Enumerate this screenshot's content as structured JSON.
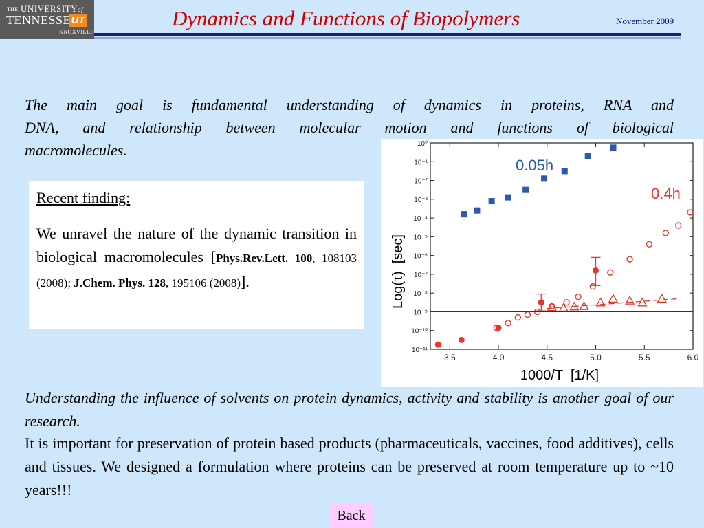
{
  "header": {
    "logo": {
      "the": "THE",
      "university": "UNIVERSITY",
      "of": "of",
      "tennessee": "TENNESSEE",
      "ut": "UT",
      "knoxville": "KNOXVILLE"
    },
    "title": "Dynamics and Functions of Biopolymers",
    "date": "November 2009"
  },
  "intro": {
    "line1": "The main goal is fundamental understanding of dynamics in proteins, RNA and",
    "line2": "DNA, and relationship between molecular motion and functions of biological",
    "line3": "macromolecules."
  },
  "findings": {
    "heading": "Recent finding:",
    "text": "We unravel the nature of the dynamic transition in biological macromolecules",
    "open_bracket": "[",
    "ref1_journal": "Phys.Rev.Lett. 100",
    "ref1_rest": ", 108103 (2008); ",
    "ref2_journal": "J.Chem. Phys. 128",
    "ref2_rest": ", 195106 (2008)",
    "close": "]."
  },
  "chart_data": {
    "type": "scatter",
    "xlabel": "1000/T  [1/K]",
    "ylabel": "Log(τ)  [sec]",
    "xlim": [
      3.3,
      6.0
    ],
    "x_ticks": [
      "3.5",
      "4.0",
      "4.5",
      "5.0",
      "5.5",
      "6.0"
    ],
    "y_scale": "log",
    "ylim_exp": [
      -11,
      0
    ],
    "y_ticks": [
      "10⁻¹¹",
      "10⁻¹⁰",
      "10⁻⁹",
      "10⁻⁸",
      "10⁻⁷",
      "10⁻⁶",
      "10⁻⁵",
      "10⁻⁴",
      "10⁻³",
      "10⁻²",
      "10⁻¹",
      "10⁰"
    ],
    "reference_line_exp": -9,
    "series": [
      {
        "name": "0.05h",
        "color": "#2e57b3",
        "marker": "square-filled",
        "points": [
          [
            3.65,
            -3.8
          ],
          [
            3.78,
            -3.6
          ],
          [
            3.93,
            -3.1
          ],
          [
            4.1,
            -2.9
          ],
          [
            4.28,
            -2.5
          ],
          [
            4.47,
            -1.9
          ],
          [
            4.68,
            -1.5
          ],
          [
            4.92,
            -0.7
          ],
          [
            5.18,
            -0.25
          ]
        ]
      },
      {
        "name": "0.4h",
        "color": "#e8352a",
        "marker": "circle-open",
        "points": [
          [
            3.98,
            -9.85
          ],
          [
            4.1,
            -9.6
          ],
          [
            4.2,
            -9.3
          ],
          [
            4.3,
            -9.15
          ],
          [
            4.4,
            -9.0
          ],
          [
            4.55,
            -8.7
          ],
          [
            4.7,
            -8.5
          ],
          [
            4.82,
            -8.2
          ],
          [
            4.97,
            -7.65
          ],
          [
            5.15,
            -6.9
          ],
          [
            5.35,
            -6.2
          ],
          [
            5.55,
            -5.4
          ],
          [
            5.72,
            -4.8
          ],
          [
            5.85,
            -4.4
          ],
          [
            5.97,
            -3.7
          ]
        ]
      },
      {
        "name": "0.4h-filled",
        "color": "#e8352a",
        "marker": "circle-filled",
        "points": [
          [
            3.38,
            -10.75
          ],
          [
            3.62,
            -10.5
          ],
          [
            4.0,
            -9.85
          ],
          [
            4.44,
            -8.5
          ],
          [
            5.0,
            -6.8
          ]
        ]
      },
      {
        "name": "0.4h-triangle",
        "color": "#e8352a",
        "marker": "triangle-open",
        "points": [
          [
            4.55,
            -8.75
          ],
          [
            4.67,
            -8.78
          ],
          [
            4.78,
            -8.72
          ],
          [
            4.88,
            -8.7
          ],
          [
            5.05,
            -8.5
          ],
          [
            5.18,
            -8.3
          ],
          [
            5.35,
            -8.4
          ],
          [
            5.48,
            -8.5
          ],
          [
            5.68,
            -8.3
          ]
        ]
      }
    ]
  },
  "bottom": {
    "goal": "Understanding the influence of solvents on protein dynamics, activity and stability is another goal of our research.",
    "text": "It is important for preservation of protein based products (pharmaceuticals, vaccines, food additives), cells and tissues. We designed a formulation where proteins can be preserved at room temperature up to ~10 years!!!"
  },
  "back_label": "Back"
}
